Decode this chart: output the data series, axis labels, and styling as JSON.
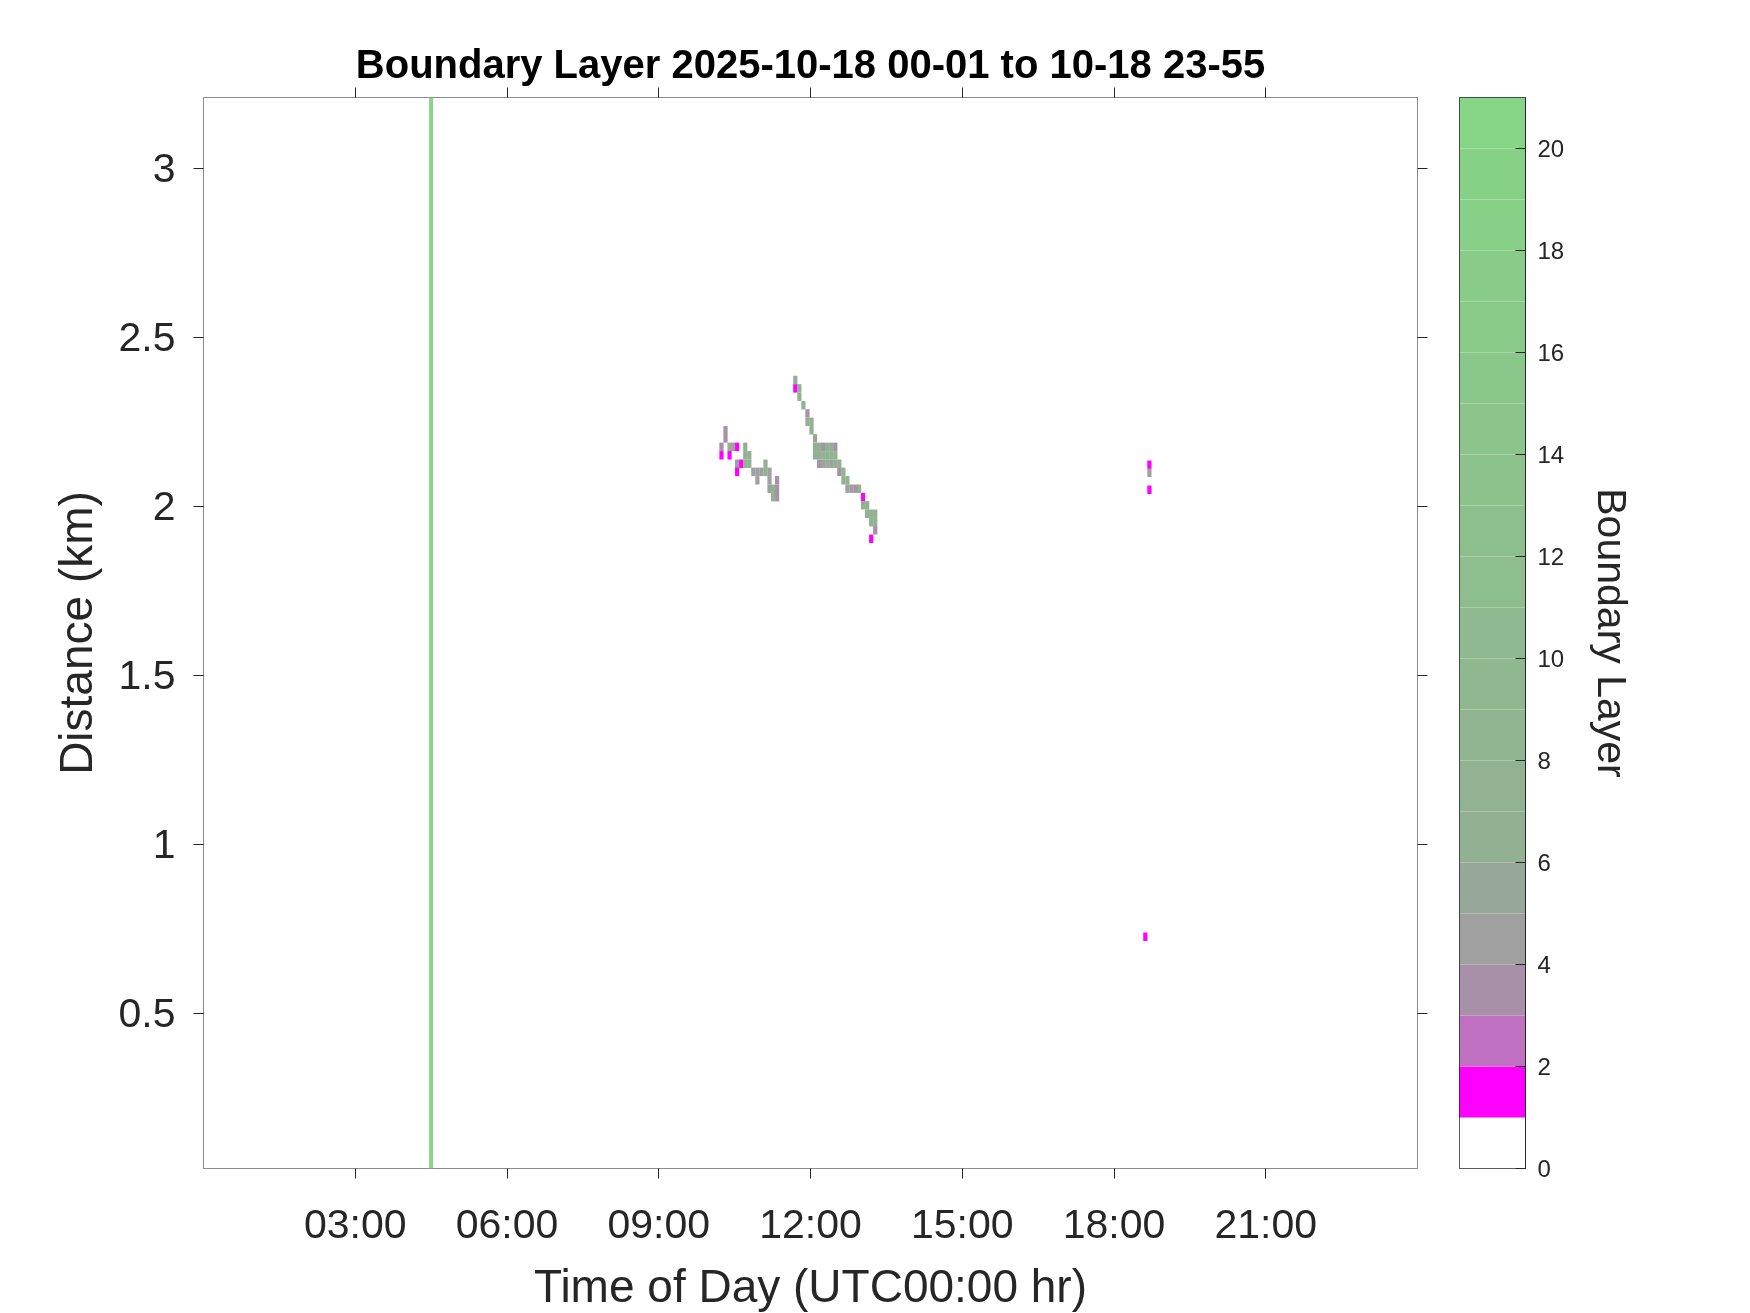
{
  "chart_data": {
    "type": "scatter",
    "title": "Boundary Layer 2025-10-18 00-01 to 10-18 23-55",
    "xlabel": "Time of Day (UTC00:00 hr)",
    "ylabel": "Distance (km)",
    "clabel": "Boundary Layer",
    "marker": "square",
    "xlim": [
      0,
      24
    ],
    "ylim": [
      0.04,
      3.21
    ],
    "xticks": [
      {
        "value": 3,
        "label": "03:00"
      },
      {
        "value": 6,
        "label": "06:00"
      },
      {
        "value": 9,
        "label": "09:00"
      },
      {
        "value": 12,
        "label": "12:00"
      },
      {
        "value": 15,
        "label": "15:00"
      },
      {
        "value": 18,
        "label": "18:00"
      },
      {
        "value": 21,
        "label": "21:00"
      }
    ],
    "yticks": [
      0.5,
      1,
      1.5,
      2,
      2.5,
      3
    ],
    "clim": [
      0,
      21
    ],
    "cticks": [
      0,
      2,
      4,
      6,
      8,
      10,
      12,
      14,
      16,
      18,
      20
    ],
    "ref_lines": [
      {
        "axis": "x",
        "value": 4.5,
        "color": "#88d48a"
      }
    ],
    "x": [
      10.24,
      10.24,
      10.32,
      10.32,
      10.4,
      10.4,
      10.47,
      10.55,
      10.55,
      10.55,
      10.63,
      10.71,
      10.71,
      10.71,
      10.79,
      10.79,
      10.87,
      10.95,
      10.95,
      11.03,
      11.11,
      11.11,
      11.19,
      11.19,
      11.19,
      11.26,
      11.26,
      11.34,
      11.34,
      11.34,
      11.7,
      11.7,
      11.78,
      11.78,
      11.86,
      11.94,
      11.94,
      12.02,
      12.02,
      12.09,
      12.09,
      12.09,
      12.17,
      12.17,
      12.17,
      12.25,
      12.25,
      12.25,
      12.33,
      12.33,
      12.33,
      12.41,
      12.41,
      12.41,
      12.49,
      12.49,
      12.49,
      12.57,
      12.57,
      12.65,
      12.65,
      12.73,
      12.73,
      12.81,
      12.89,
      12.96,
      13.04,
      13.04,
      13.12,
      13.12,
      13.2,
      13.2,
      13.2,
      13.28,
      13.28,
      13.28,
      18.7,
      18.7,
      18.7,
      18.62
    ],
    "values": [
      2.176,
      2.151,
      2.225,
      2.201,
      2.176,
      2.151,
      2.176,
      2.176,
      2.126,
      2.102,
      2.126,
      2.176,
      2.151,
      2.126,
      2.151,
      2.126,
      2.102,
      2.102,
      2.077,
      2.102,
      2.126,
      2.102,
      2.102,
      2.077,
      2.052,
      2.052,
      2.027,
      2.077,
      2.052,
      2.027,
      2.374,
      2.349,
      2.349,
      2.324,
      2.299,
      2.275,
      2.25,
      2.25,
      2.225,
      2.201,
      2.176,
      2.151,
      2.176,
      2.151,
      2.126,
      2.176,
      2.151,
      2.126,
      2.176,
      2.151,
      2.126,
      2.176,
      2.151,
      2.126,
      2.176,
      2.151,
      2.126,
      2.126,
      2.102,
      2.102,
      2.077,
      2.077,
      2.052,
      2.052,
      2.052,
      2.052,
      2.027,
      2.003,
      2.003,
      1.978,
      1.978,
      1.953,
      1.904,
      1.978,
      1.953,
      1.929,
      2.123,
      2.099,
      2.049,
      0.726
    ],
    "cvalues": [
      3,
      1,
      3,
      3,
      6,
      1,
      4,
      1,
      4,
      1,
      1,
      6,
      6,
      6,
      6,
      6,
      4,
      4,
      4,
      4,
      6,
      6,
      4,
      4,
      4,
      7,
      7,
      3,
      3,
      3,
      7,
      1,
      7,
      7,
      7,
      3,
      6,
      6,
      6,
      4,
      6,
      6,
      6,
      6,
      3,
      3,
      7,
      4,
      6,
      7,
      6,
      6,
      7,
      4,
      3,
      6,
      6,
      6,
      3,
      7,
      7,
      7,
      4,
      4,
      3,
      7,
      1,
      7,
      7,
      7,
      6,
      7,
      1,
      6,
      7,
      3,
      1,
      4,
      1,
      1
    ]
  }
}
